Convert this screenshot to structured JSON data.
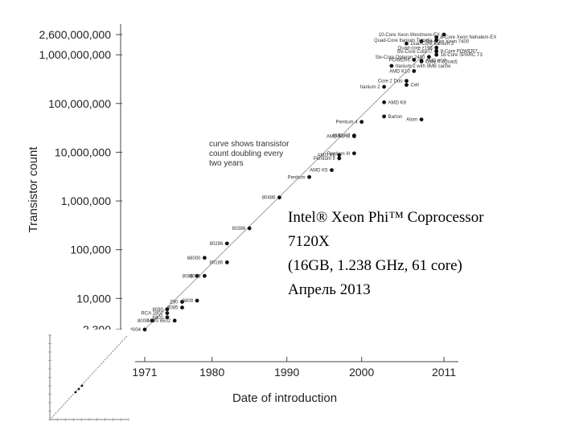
{
  "chart_data": {
    "type": "scatter",
    "xlabel": "Date of introduction",
    "ylabel": "Transistor count",
    "scale": "log-y",
    "xlim": [
      1971,
      2011
    ],
    "x_ticks": [
      "1971",
      "1980",
      "1990",
      "2000",
      "2011"
    ],
    "y_ticks": [
      {
        "value": 2300,
        "label": "2,300"
      },
      {
        "value": 10000,
        "label": "10,000"
      },
      {
        "value": 100000,
        "label": "100,000"
      },
      {
        "value": 1000000,
        "label": "1,000,000"
      },
      {
        "value": 10000000,
        "label": "10,000,000"
      },
      {
        "value": 100000000,
        "label": "100,000,000"
      },
      {
        "value": 1000000000,
        "label": "1,000,000,000"
      },
      {
        "value": 2600000000,
        "label": "2,600,000,000"
      }
    ],
    "trend_note": [
      "curve shows transistor",
      "count doubling every",
      "two years"
    ],
    "trend_line": {
      "x": [
        1971,
        2011
      ],
      "y": [
        2300,
        2600000000
      ]
    },
    "points": [
      {
        "label": "4004",
        "x": 1971,
        "y": 2300
      },
      {
        "label": "RCA 1802",
        "x": 1974,
        "y": 5000
      },
      {
        "label": "8008",
        "x": 1972,
        "y": 3500
      },
      {
        "label": "8080",
        "x": 1974,
        "y": 6000
      },
      {
        "label": "6800",
        "x": 1974,
        "y": 4100
      },
      {
        "label": "8085",
        "x": 1976,
        "y": 6500
      },
      {
        "label": "Z80",
        "x": 1976,
        "y": 8500
      },
      {
        "label": "MOS 6502",
        "x": 1975,
        "y": 3500
      },
      {
        "label": "6809",
        "x": 1978,
        "y": 9000
      },
      {
        "label": "8086",
        "x": 1978,
        "y": 29000
      },
      {
        "label": "8088",
        "x": 1979,
        "y": 29000
      },
      {
        "label": "68000",
        "x": 1979,
        "y": 68000
      },
      {
        "label": "80186",
        "x": 1982,
        "y": 55000
      },
      {
        "label": "80286",
        "x": 1982,
        "y": 134000
      },
      {
        "label": "80386",
        "x": 1985,
        "y": 275000
      },
      {
        "label": "80486",
        "x": 1989,
        "y": 1180000
      },
      {
        "label": "Pentium",
        "x": 1993,
        "y": 3100000
      },
      {
        "label": "AMD K5",
        "x": 1996,
        "y": 4300000
      },
      {
        "label": "Pentium II",
        "x": 1997,
        "y": 7500000
      },
      {
        "label": "AMD K6",
        "x": 1997,
        "y": 8800000
      },
      {
        "label": "Pentium III",
        "x": 1999,
        "y": 9500000
      },
      {
        "label": "AMD K6-III",
        "x": 1999,
        "y": 21300000
      },
      {
        "label": "AMD K7",
        "x": 1999,
        "y": 22000000
      },
      {
        "label": "Pentium 4",
        "x": 2000,
        "y": 42000000
      },
      {
        "label": "Barton",
        "x": 2003,
        "y": 54300000
      },
      {
        "label": "Atom",
        "x": 2008,
        "y": 47000000
      },
      {
        "label": "AMD K8",
        "x": 2003,
        "y": 105900000
      },
      {
        "label": "Itanium 2",
        "x": 2003,
        "y": 220000000
      },
      {
        "label": "Cell",
        "x": 2006,
        "y": 241000000
      },
      {
        "label": "Core 2 Duo",
        "x": 2006,
        "y": 291000000
      },
      {
        "label": "Core i7 (Quad)",
        "x": 2008,
        "y": 731000000
      },
      {
        "label": "AMD K10",
        "x": 2007,
        "y": 463000000
      },
      {
        "label": "Itanium 2 with 9MB cache",
        "x": 2004,
        "y": 592000000
      },
      {
        "label": "POWER6",
        "x": 2007,
        "y": 789000000
      },
      {
        "label": "AMD K10",
        "x": 2008,
        "y": 758000000
      },
      {
        "label": "Six-Core Opteron 2400",
        "x": 2009,
        "y": 904000000
      },
      {
        "label": "Six-Core Xeon 7400",
        "x": 2008,
        "y": 1900000000
      },
      {
        "label": "Quad-Core Itanium Tukwila",
        "x": 2010,
        "y": 2000000000
      },
      {
        "label": "Dual-Core Itanium 2",
        "x": 2006,
        "y": 1700000000
      },
      {
        "label": "Six-Core Core i7",
        "x": 2010,
        "y": 1170000000
      },
      {
        "label": "8-Core POWER7",
        "x": 2010,
        "y": 1200000000
      },
      {
        "label": "Quad-core z196",
        "x": 2010,
        "y": 1400000000
      },
      {
        "label": "8-Core Xeon Nehalem-EX",
        "x": 2010,
        "y": 2300000000
      },
      {
        "label": "10-Core Xeon Westmere-EX",
        "x": 2011,
        "y": 2600000000
      },
      {
        "label": "16-Core SPARC T3",
        "x": 2010,
        "y": 1000000000
      }
    ]
  },
  "overlay": {
    "line1": "Intel® Xeon Phi™ Coprocessor",
    "line2": "7120X",
    "line3": "(16GB, 1.238 GHz, 61 core)",
    "line4": "Апрель 2013"
  }
}
